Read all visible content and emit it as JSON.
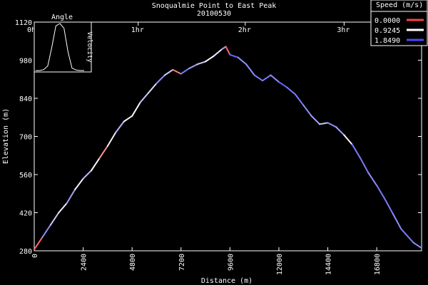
{
  "chart_data": {
    "type": "line",
    "title": "Snoqualmie Point to East Peak",
    "subtitle": "20100530",
    "xlabel": "Distance (m)",
    "ylabel": "Elevation (m)",
    "xlim": [
      0,
      19000
    ],
    "ylim": [
      280,
      1120
    ],
    "x_ticks": [
      "0",
      "2400",
      "4800",
      "7200",
      "9600",
      "12000",
      "14400",
      "16800"
    ],
    "y_ticks": [
      "280",
      "420",
      "560",
      "700",
      "840",
      "980",
      "1120"
    ],
    "time_ticks": [
      "0hr",
      "1hr",
      "2hr",
      "3hr"
    ],
    "time_tick_positions": [
      0,
      5100,
      10350,
      15200
    ],
    "legend": {
      "title": "Speed (m/s)",
      "position": "top-right",
      "entries": [
        {
          "label": "0.0000",
          "color": "#ff4040"
        },
        {
          "label": "0.9245",
          "color": "#ffffff"
        },
        {
          "label": "1.8490",
          "color": "#4a4aff"
        }
      ]
    },
    "inset": {
      "title": "Angle",
      "side_label": "Velocity",
      "description_values": [
        0,
        0,
        0.02,
        0.1,
        0.5,
        0.95,
        1.0,
        0.9,
        0.4,
        0.05,
        0.01,
        0,
        0
      ]
    },
    "series": [
      {
        "x": [
          0,
          400,
          800,
          1200,
          1600,
          2000,
          2400,
          2800,
          3200,
          3600,
          4000,
          4400,
          4800,
          5200,
          5600,
          6000,
          6400,
          6800,
          7200,
          7600,
          8000,
          8400,
          8800,
          9200,
          9400,
          9600,
          10000,
          10400,
          10800,
          11200,
          11600,
          12000,
          12400,
          12800,
          13200,
          13600,
          14000,
          14400,
          14800,
          15200,
          15600,
          16000,
          16400,
          16800,
          17200,
          17600,
          18000,
          18600,
          19000
        ],
        "y": [
          285,
          330,
          375,
          420,
          455,
          505,
          545,
          575,
          620,
          665,
          715,
          755,
          775,
          825,
          860,
          895,
          925,
          945,
          930,
          950,
          965,
          975,
          995,
          1020,
          1030,
          1000,
          990,
          965,
          925,
          905,
          925,
          900,
          880,
          855,
          815,
          775,
          745,
          750,
          735,
          705,
          670,
          620,
          565,
          520,
          470,
          415,
          360,
          310,
          290
        ],
        "speed": [
          0.2,
          1.5,
          1.2,
          1.0,
          1.4,
          1.0,
          1.3,
          0.9,
          0.4,
          1.0,
          1.3,
          1.0,
          0.9,
          1.2,
          1.1,
          1.5,
          1.2,
          0.3,
          1.6,
          1.4,
          1.2,
          0.9,
          1.0,
          1.4,
          0.2,
          1.7,
          1.5,
          1.5,
          1.6,
          1.6,
          1.5,
          1.7,
          1.6,
          1.6,
          1.5,
          1.4,
          1.2,
          1.5,
          1.4,
          0.9,
          1.6,
          1.6,
          1.5,
          1.6,
          1.6,
          1.5,
          1.6,
          1.5,
          1.5
        ]
      }
    ]
  }
}
